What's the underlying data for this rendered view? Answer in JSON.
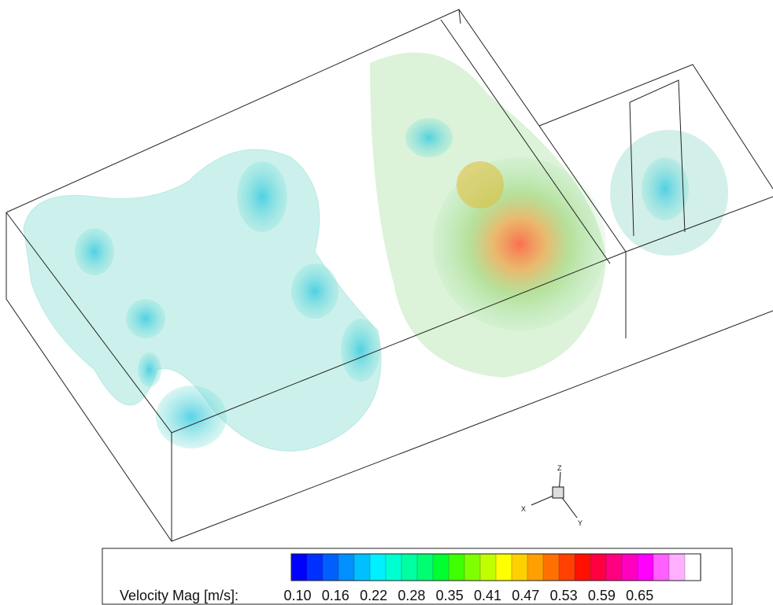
{
  "legend": {
    "label": "Velocity Mag [m/s]:",
    "ticks": [
      "0.10",
      "0.16",
      "0.22",
      "0.28",
      "0.35",
      "0.41",
      "0.47",
      "0.53",
      "0.59",
      "0.65"
    ],
    "colors": [
      "#0000ff",
      "#0030ff",
      "#0060ff",
      "#0090ff",
      "#00c0ff",
      "#00f0ff",
      "#00ffd0",
      "#00ffa0",
      "#00ff70",
      "#00ff30",
      "#40ff00",
      "#80ff00",
      "#c0ff00",
      "#ffff00",
      "#ffd000",
      "#ffa000",
      "#ff7000",
      "#ff4000",
      "#ff1000",
      "#ff0040",
      "#ff0080",
      "#ff00c0",
      "#ff00ff",
      "#ff60ff",
      "#ffb0ff",
      "#ffffff"
    ]
  },
  "axes": {
    "x": "X",
    "y": "Y",
    "z": "Z"
  }
}
